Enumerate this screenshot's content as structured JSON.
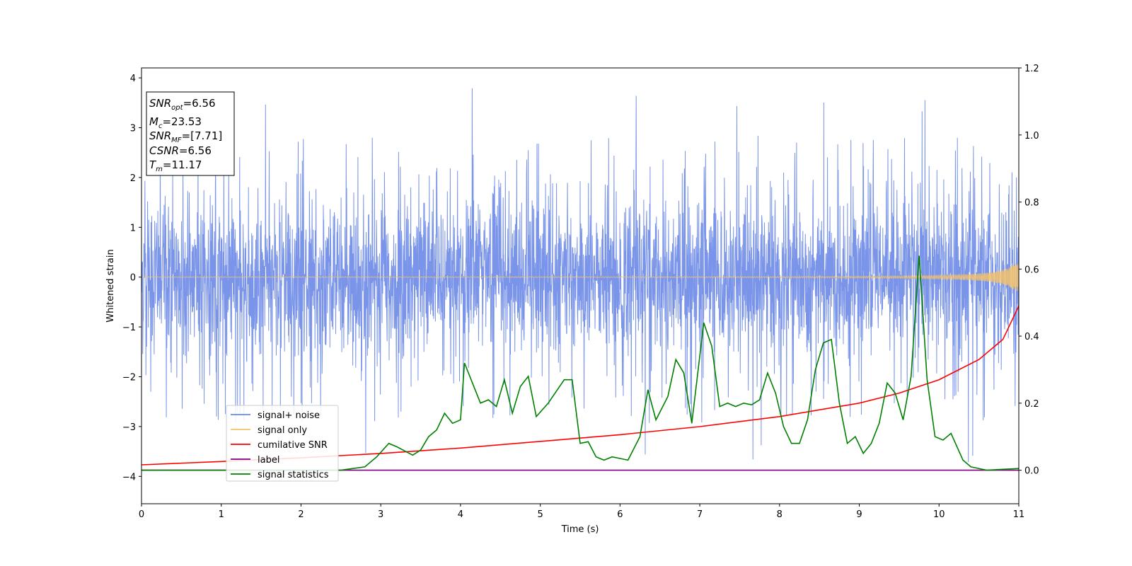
{
  "chart_data": {
    "type": "line",
    "title": "",
    "xlabel": "Time (s)",
    "ylabel": "Whitened strain",
    "y2label": "",
    "xlim": [
      0,
      11
    ],
    "ylim": [
      -4.55,
      4.2
    ],
    "y2lim": [
      -0.1,
      1.2
    ],
    "xticks": [
      0,
      1,
      2,
      3,
      4,
      5,
      6,
      7,
      8,
      9,
      10,
      11
    ],
    "yticks": [
      -4,
      -3,
      -2,
      -1,
      0,
      1,
      2,
      3,
      4
    ],
    "y2ticks": [
      0.0,
      0.2,
      0.4,
      0.6,
      0.8,
      1.0,
      1.2
    ],
    "grid": false,
    "legend_position": "lower-left",
    "info_box": {
      "snr_opt": {
        "sym": "SNR",
        "sub": "opt",
        "value": "=6.56"
      },
      "mc": {
        "sym": "M",
        "sub": "c",
        "value": "=23.53"
      },
      "snr_mf": {
        "sym": "SNR",
        "sub": "MF",
        "value": "=[7.71]"
      },
      "csnr": {
        "sym": "CSNR",
        "sub": "",
        "value": "=6.56"
      },
      "tm": {
        "sym": "T",
        "sub": "m",
        "value": "=11.17"
      }
    },
    "series": [
      {
        "name": "signal+ noise",
        "axis": "left",
        "color": "#6a88e6",
        "kind": "noise",
        "typical_abs_range": [
          -2.1,
          2.0
        ],
        "max_spike": 3.8,
        "min_spike": -3.9
      },
      {
        "name": "signal only",
        "axis": "left",
        "color": "#f5c26b",
        "kind": "chirp",
        "amplitude_at_end": 0.28,
        "t_merge": 11.17
      },
      {
        "name": "cumilative SNR",
        "axis": "right",
        "color": "#ff0000",
        "x": [
          0,
          1,
          2,
          3,
          4,
          5,
          6,
          7,
          8,
          9,
          9.5,
          10,
          10.5,
          10.8,
          11
        ],
        "values": [
          0.016,
          0.026,
          0.037,
          0.05,
          0.066,
          0.086,
          0.106,
          0.13,
          0.16,
          0.2,
          0.23,
          0.27,
          0.33,
          0.39,
          0.49
        ]
      },
      {
        "name": "label",
        "axis": "right",
        "color": "#800080",
        "x": [
          0,
          11
        ],
        "values": [
          0.0,
          0.0
        ]
      },
      {
        "name": "signal statistics",
        "axis": "right",
        "color": "#008000",
        "x": [
          0,
          2.5,
          2.8,
          2.95,
          3.1,
          3.2,
          3.4,
          3.5,
          3.6,
          3.7,
          3.8,
          3.9,
          4.0,
          4.05,
          4.15,
          4.25,
          4.35,
          4.45,
          4.55,
          4.65,
          4.75,
          4.85,
          4.95,
          5.1,
          5.3,
          5.4,
          5.5,
          5.6,
          5.7,
          5.8,
          5.9,
          6.0,
          6.1,
          6.25,
          6.35,
          6.45,
          6.6,
          6.7,
          6.8,
          6.9,
          7.05,
          7.15,
          7.25,
          7.35,
          7.45,
          7.55,
          7.65,
          7.75,
          7.85,
          7.95,
          8.05,
          8.15,
          8.25,
          8.35,
          8.45,
          8.55,
          8.65,
          8.75,
          8.85,
          8.95,
          9.05,
          9.15,
          9.25,
          9.35,
          9.45,
          9.55,
          9.65,
          9.75,
          9.85,
          9.95,
          10.05,
          10.15,
          10.3,
          10.4,
          10.6,
          11.0
        ],
        "values": [
          0.0,
          0.0,
          0.01,
          0.04,
          0.08,
          0.07,
          0.045,
          0.06,
          0.1,
          0.12,
          0.17,
          0.14,
          0.15,
          0.32,
          0.26,
          0.2,
          0.21,
          0.19,
          0.27,
          0.17,
          0.25,
          0.28,
          0.16,
          0.2,
          0.27,
          0.27,
          0.08,
          0.085,
          0.04,
          0.03,
          0.04,
          0.035,
          0.03,
          0.1,
          0.24,
          0.15,
          0.22,
          0.33,
          0.29,
          0.14,
          0.44,
          0.37,
          0.19,
          0.2,
          0.19,
          0.2,
          0.195,
          0.21,
          0.29,
          0.23,
          0.13,
          0.08,
          0.08,
          0.15,
          0.3,
          0.38,
          0.39,
          0.2,
          0.08,
          0.1,
          0.05,
          0.08,
          0.14,
          0.26,
          0.23,
          0.15,
          0.28,
          0.64,
          0.27,
          0.1,
          0.09,
          0.11,
          0.03,
          0.01,
          0.0,
          0.005
        ]
      }
    ]
  }
}
